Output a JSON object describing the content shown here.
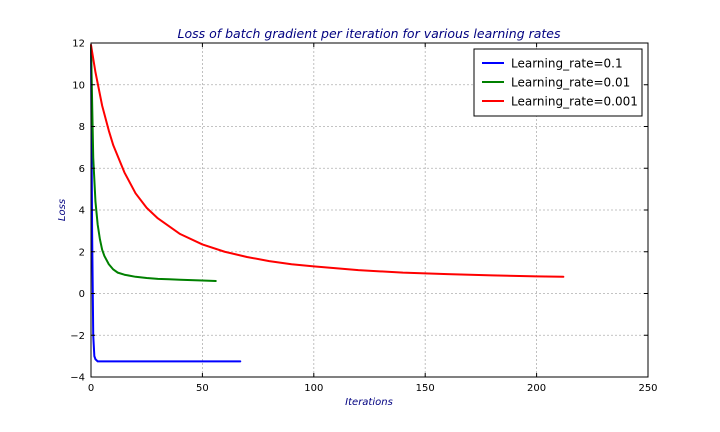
{
  "chart_data": {
    "type": "line",
    "title": "Loss of batch gradient per iteration for various learning rates",
    "xlabel": "Iterations",
    "ylabel": "Loss",
    "xlim": [
      0,
      250
    ],
    "ylim": [
      -4,
      12
    ],
    "xticks": [
      0,
      50,
      100,
      150,
      200,
      250
    ],
    "yticks": [
      -4,
      -2,
      0,
      2,
      4,
      6,
      8,
      10,
      12
    ],
    "grid": true,
    "legend_position": "top-right",
    "series": [
      {
        "name": "Learning_rate=0.1",
        "color": "#0000ff",
        "x": [
          0,
          0.5,
          1,
          1.5,
          2,
          3,
          4,
          5,
          10,
          20,
          30,
          40,
          50,
          60,
          67
        ],
        "y": [
          11.9,
          3.0,
          -2.0,
          -3.0,
          -3.15,
          -3.25,
          -3.25,
          -3.25,
          -3.25,
          -3.25,
          -3.25,
          -3.25,
          -3.25,
          -3.25,
          -3.25
        ]
      },
      {
        "name": "Learning_rate=0.01",
        "color": "#008000",
        "x": [
          0,
          1,
          2,
          3,
          4,
          5,
          6,
          8,
          10,
          12,
          15,
          20,
          25,
          30,
          35,
          40,
          45,
          50,
          56
        ],
        "y": [
          11.9,
          6.5,
          4.4,
          3.3,
          2.6,
          2.1,
          1.8,
          1.4,
          1.15,
          1.0,
          0.9,
          0.8,
          0.74,
          0.7,
          0.68,
          0.66,
          0.64,
          0.62,
          0.6
        ]
      },
      {
        "name": "Learning_rate=0.001",
        "color": "#ff0000",
        "x": [
          0,
          2,
          5,
          8,
          10,
          15,
          20,
          25,
          30,
          40,
          50,
          60,
          70,
          80,
          90,
          100,
          120,
          140,
          160,
          180,
          200,
          212
        ],
        "y": [
          11.9,
          10.6,
          9.0,
          7.8,
          7.1,
          5.8,
          4.8,
          4.1,
          3.6,
          2.85,
          2.35,
          2.0,
          1.75,
          1.55,
          1.4,
          1.3,
          1.12,
          1.0,
          0.93,
          0.87,
          0.82,
          0.8
        ]
      }
    ]
  }
}
